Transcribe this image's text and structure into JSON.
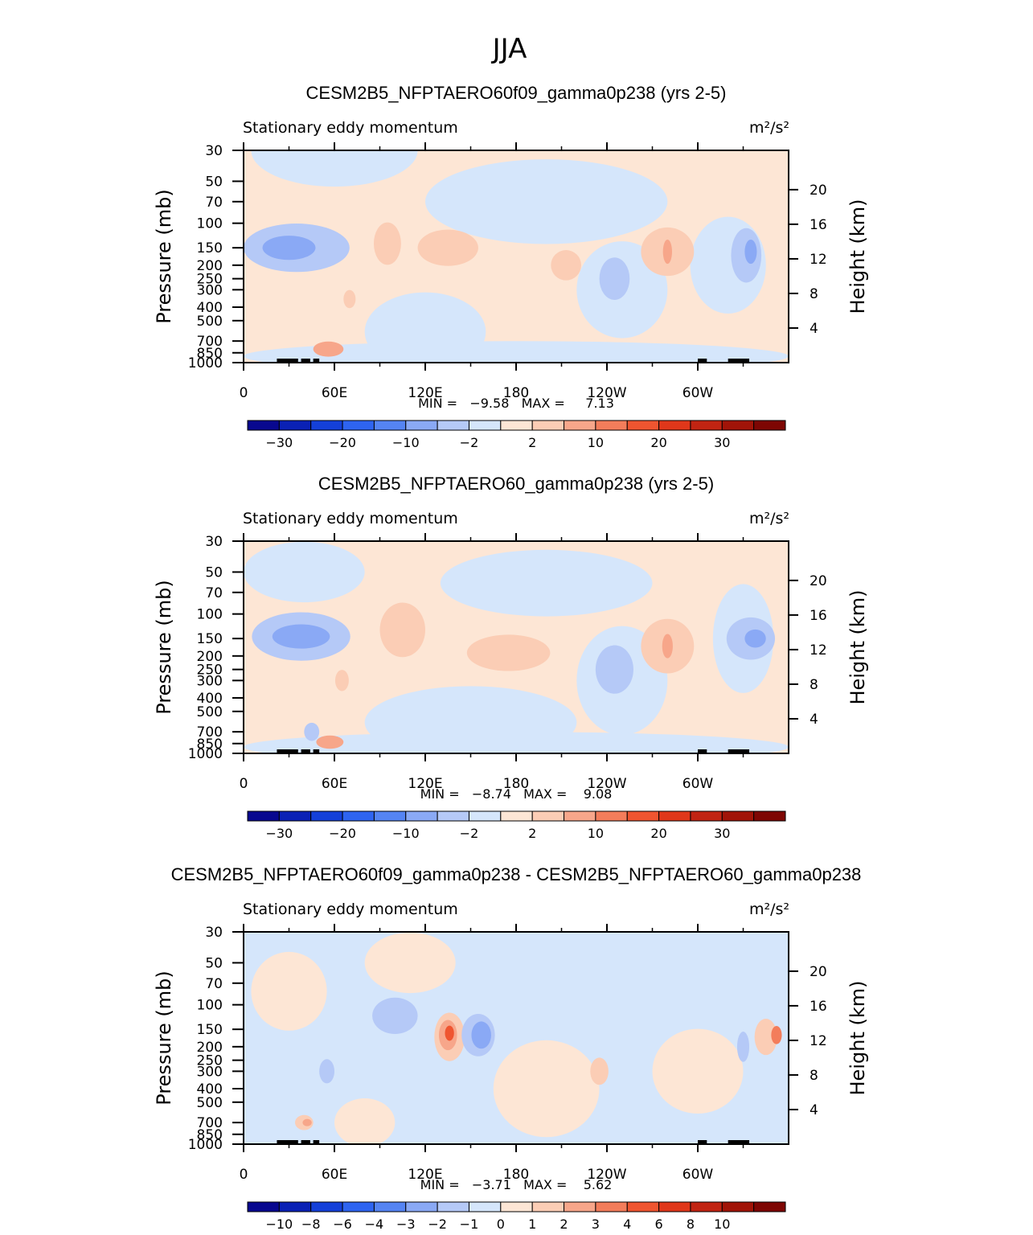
{
  "page_title": "JJA",
  "colors": {
    "palette_18": [
      "#08088f",
      "#0a21b5",
      "#1440d9",
      "#2e64f0",
      "#5584f3",
      "#8aa9f5",
      "#b5c9f7",
      "#d5e6fb",
      "#fde6d5",
      "#fbcdb5",
      "#f7a68a",
      "#f37d5b",
      "#ef5530",
      "#e0371a",
      "#c12412",
      "#a11408",
      "#7e0603"
    ],
    "palette_16": [
      "#08088f",
      "#0a21b5",
      "#1440d9",
      "#2e64f0",
      "#5584f3",
      "#8aa9f5",
      "#b5c9f7",
      "#d5e6fb",
      "#fde6d5",
      "#fbcdb5",
      "#f7a68a",
      "#f37d5b",
      "#ef5530",
      "#e0371a",
      "#c12412",
      "#a11408",
      "#7e0603"
    ],
    "light_blue": "#d5e6fb",
    "mid_blue": "#b5c9f7",
    "blue": "#8aa9f5",
    "light_red": "#fde6d5",
    "mid_red": "#fbcdb5",
    "red": "#f7a68a",
    "strong_red": "#f37d5b",
    "stronger_red": "#ef5530"
  },
  "chart_data": [
    {
      "type": "heatmap",
      "title": "CESM2B5_NFPTAERO60f09_gamma0p238 (yrs 2-5)",
      "left_label": "Stationary eddy momentum",
      "unit": "m²/s²",
      "ylabel": "Pressure (mb)",
      "ylabel_right": "Height (km)",
      "x_ticks": [
        "0",
        "60E",
        "120E",
        "180",
        "120W",
        "60W"
      ],
      "y_ticks": [
        "30",
        "50",
        "70",
        "100",
        "150",
        "200",
        "250",
        "300",
        "400",
        "500",
        "700",
        "850",
        "1000"
      ],
      "y_ticks_right": [
        "20",
        "16",
        "12",
        "8",
        "4"
      ],
      "min_max": "MIN =   −9.58   MAX =     7.13",
      "colorbar_labels": [
        "−30",
        "−20",
        "−10",
        "−2",
        "2",
        "10",
        "20",
        "30"
      ],
      "background": "light_red",
      "blobs": [
        {
          "lon": 60,
          "p": 30,
          "w": 110,
          "h": 1.2,
          "color": "light_blue"
        },
        {
          "lon": 200,
          "p": 70,
          "w": 160,
          "h": 1.4,
          "color": "light_blue"
        },
        {
          "lon": 250,
          "p": 300,
          "w": 60,
          "h": 1.6,
          "color": "light_blue"
        },
        {
          "lon": 320,
          "p": 200,
          "w": 50,
          "h": 1.6,
          "color": "light_blue"
        },
        {
          "lon": 120,
          "p": 600,
          "w": 80,
          "h": 1.3,
          "color": "light_blue"
        },
        {
          "lon": 180,
          "p": 900,
          "w": 360,
          "h": 0.5,
          "color": "light_blue"
        },
        {
          "lon": 35,
          "p": 150,
          "w": 70,
          "h": 0.8,
          "color": "mid_blue"
        },
        {
          "lon": 30,
          "p": 150,
          "w": 35,
          "h": 0.4,
          "color": "blue"
        },
        {
          "lon": 245,
          "p": 250,
          "w": 20,
          "h": 0.7,
          "color": "mid_blue"
        },
        {
          "lon": 332,
          "p": 170,
          "w": 20,
          "h": 0.9,
          "color": "mid_blue"
        },
        {
          "lon": 335,
          "p": 160,
          "w": 8,
          "h": 0.4,
          "color": "blue"
        },
        {
          "lon": 95,
          "p": 140,
          "w": 18,
          "h": 0.7,
          "color": "mid_red"
        },
        {
          "lon": 135,
          "p": 150,
          "w": 40,
          "h": 0.6,
          "color": "mid_red"
        },
        {
          "lon": 213,
          "p": 200,
          "w": 20,
          "h": 0.5,
          "color": "mid_red"
        },
        {
          "lon": 280,
          "p": 160,
          "w": 35,
          "h": 0.8,
          "color": "mid_red"
        },
        {
          "lon": 280,
          "p": 160,
          "w": 6,
          "h": 0.4,
          "color": "red"
        },
        {
          "lon": 56,
          "p": 800,
          "w": 20,
          "h": 0.25,
          "color": "red"
        },
        {
          "lon": 70,
          "p": 350,
          "w": 8,
          "h": 0.3,
          "color": "mid_red"
        }
      ]
    },
    {
      "type": "heatmap",
      "title": "CESM2B5_NFPTAERO60_gamma0p238 (yrs 2-5)",
      "left_label": "Stationary eddy momentum",
      "unit": "m²/s²",
      "ylabel": "Pressure (mb)",
      "ylabel_right": "Height (km)",
      "x_ticks": [
        "0",
        "60E",
        "120E",
        "180",
        "120W",
        "60W"
      ],
      "y_ticks": [
        "30",
        "50",
        "70",
        "100",
        "150",
        "200",
        "250",
        "300",
        "400",
        "500",
        "700",
        "850",
        "1000"
      ],
      "y_ticks_right": [
        "20",
        "16",
        "12",
        "8",
        "4"
      ],
      "min_max": "MIN =   −8.74   MAX =    9.08",
      "colorbar_labels": [
        "−30",
        "−20",
        "−10",
        "−2",
        "2",
        "10",
        "20",
        "30"
      ],
      "background": "light_red",
      "blobs": [
        {
          "lon": 40,
          "p": 50,
          "w": 80,
          "h": 1.0,
          "color": "light_blue"
        },
        {
          "lon": 200,
          "p": 60,
          "w": 140,
          "h": 1.1,
          "color": "light_blue"
        },
        {
          "lon": 250,
          "p": 300,
          "w": 60,
          "h": 1.8,
          "color": "light_blue"
        },
        {
          "lon": 330,
          "p": 150,
          "w": 40,
          "h": 1.8,
          "color": "light_blue"
        },
        {
          "lon": 150,
          "p": 600,
          "w": 140,
          "h": 1.2,
          "color": "light_blue"
        },
        {
          "lon": 180,
          "p": 900,
          "w": 360,
          "h": 0.5,
          "color": "light_blue"
        },
        {
          "lon": 38,
          "p": 145,
          "w": 65,
          "h": 0.8,
          "color": "mid_blue"
        },
        {
          "lon": 38,
          "p": 145,
          "w": 38,
          "h": 0.4,
          "color": "blue"
        },
        {
          "lon": 245,
          "p": 250,
          "w": 25,
          "h": 0.8,
          "color": "mid_blue"
        },
        {
          "lon": 335,
          "p": 150,
          "w": 32,
          "h": 0.7,
          "color": "mid_blue"
        },
        {
          "lon": 338,
          "p": 150,
          "w": 14,
          "h": 0.3,
          "color": "blue"
        },
        {
          "lon": 105,
          "p": 130,
          "w": 30,
          "h": 0.9,
          "color": "mid_red"
        },
        {
          "lon": 175,
          "p": 190,
          "w": 55,
          "h": 0.6,
          "color": "mid_red"
        },
        {
          "lon": 280,
          "p": 170,
          "w": 35,
          "h": 0.9,
          "color": "mid_red"
        },
        {
          "lon": 280,
          "p": 170,
          "w": 7,
          "h": 0.4,
          "color": "red"
        },
        {
          "lon": 57,
          "p": 830,
          "w": 18,
          "h": 0.22,
          "color": "red"
        },
        {
          "lon": 65,
          "p": 300,
          "w": 9,
          "h": 0.35,
          "color": "mid_red"
        },
        {
          "lon": 45,
          "p": 700,
          "w": 10,
          "h": 0.3,
          "color": "mid_blue"
        }
      ]
    },
    {
      "type": "heatmap",
      "title": "CESM2B5_NFPTAERO60f09_gamma0p238 - CESM2B5_NFPTAERO60_gamma0p238",
      "left_label": "Stationary eddy momentum",
      "unit": "m²/s²",
      "ylabel": "Pressure (mb)",
      "ylabel_right": "Height (km)",
      "x_ticks": [
        "0",
        "60E",
        "120E",
        "180",
        "120W",
        "60W"
      ],
      "y_ticks": [
        "30",
        "50",
        "70",
        "100",
        "150",
        "200",
        "250",
        "300",
        "400",
        "500",
        "700",
        "850",
        "1000"
      ],
      "y_ticks_right": [
        "20",
        "16",
        "12",
        "8",
        "4"
      ],
      "min_max": "MIN =   −3.71   MAX =    5.62",
      "colorbar_labels": [
        "−10",
        "−8",
        "−6",
        "−4",
        "−3",
        "−2",
        "−1",
        "0",
        "1",
        "2",
        "3",
        "4",
        "6",
        "8",
        "10"
      ],
      "background": "light_blue",
      "blobs": [
        {
          "lon": 30,
          "p": 80,
          "w": 50,
          "h": 1.3,
          "color": "light_red"
        },
        {
          "lon": 110,
          "p": 50,
          "w": 60,
          "h": 1.0,
          "color": "light_red"
        },
        {
          "lon": 200,
          "p": 400,
          "w": 70,
          "h": 1.6,
          "color": "light_red"
        },
        {
          "lon": 300,
          "p": 300,
          "w": 60,
          "h": 1.4,
          "color": "light_red"
        },
        {
          "lon": 80,
          "p": 700,
          "w": 40,
          "h": 0.8,
          "color": "light_red"
        },
        {
          "lon": 136,
          "p": 170,
          "w": 20,
          "h": 0.8,
          "color": "mid_red"
        },
        {
          "lon": 135,
          "p": 165,
          "w": 12,
          "h": 0.5,
          "color": "red"
        },
        {
          "lon": 136,
          "p": 160,
          "w": 6,
          "h": 0.25,
          "color": "stronger_red"
        },
        {
          "lon": 345,
          "p": 170,
          "w": 15,
          "h": 0.6,
          "color": "mid_red"
        },
        {
          "lon": 352,
          "p": 165,
          "w": 7,
          "h": 0.3,
          "color": "strong_red"
        },
        {
          "lon": 235,
          "p": 300,
          "w": 12,
          "h": 0.45,
          "color": "mid_red"
        },
        {
          "lon": 40,
          "p": 700,
          "w": 12,
          "h": 0.25,
          "color": "mid_red"
        },
        {
          "lon": 42,
          "p": 700,
          "w": 6,
          "h": 0.12,
          "color": "red"
        },
        {
          "lon": 155,
          "p": 165,
          "w": 22,
          "h": 0.7,
          "color": "mid_blue"
        },
        {
          "lon": 157,
          "p": 165,
          "w": 13,
          "h": 0.45,
          "color": "blue"
        },
        {
          "lon": 100,
          "p": 120,
          "w": 30,
          "h": 0.6,
          "color": "mid_blue"
        },
        {
          "lon": 55,
          "p": 300,
          "w": 10,
          "h": 0.4,
          "color": "mid_blue"
        },
        {
          "lon": 330,
          "p": 200,
          "w": 8,
          "h": 0.5,
          "color": "mid_blue"
        }
      ]
    }
  ]
}
